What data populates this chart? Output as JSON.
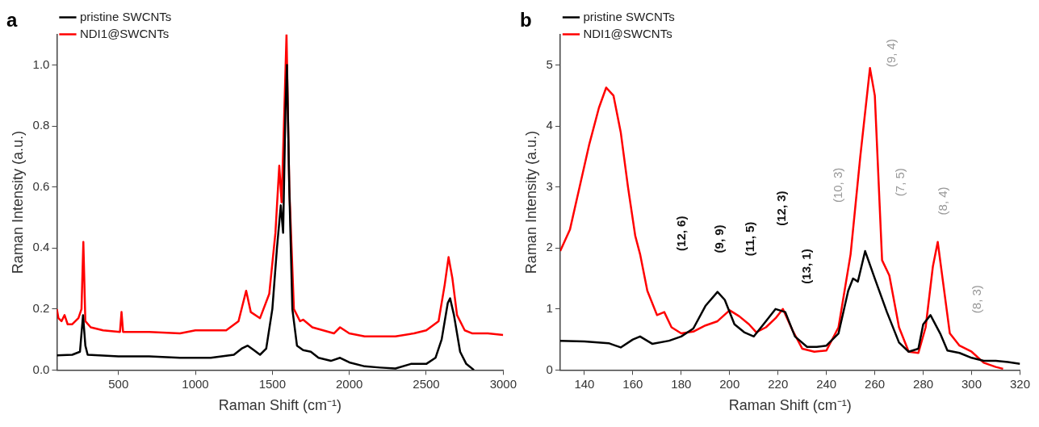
{
  "chart_data": [
    {
      "type": "line",
      "title": "a",
      "xlabel": "Raman Shift (cm⁻¹)",
      "ylabel": "Raman Intensity (a.u.)",
      "xlim": [
        100,
        3000
      ],
      "xticks": [
        500,
        1000,
        1500,
        2000,
        2500,
        3000
      ],
      "ylim": [
        0,
        1.1
      ],
      "yticks": [
        {
          "value": 0,
          "label": "0.0"
        },
        0.2,
        0.4,
        0.6,
        0.8,
        {
          "value": 1,
          "label": "1.0"
        }
      ],
      "grid": false,
      "legend": "top left",
      "series": [
        {
          "name": "pristine SWCNTs",
          "color": "#000000",
          "x": [
            100,
            200,
            250,
            270,
            285,
            300,
            500,
            700,
            900,
            1100,
            1250,
            1300,
            1340,
            1380,
            1420,
            1460,
            1500,
            1530,
            1555,
            1570,
            1585,
            1595,
            1610,
            1630,
            1660,
            1700,
            1750,
            1800,
            1880,
            1940,
            2000,
            2100,
            2200,
            2300,
            2400,
            2500,
            2560,
            2600,
            2640,
            2655,
            2680,
            2720,
            2760,
            2810
          ],
          "values": [
            0.048,
            0.05,
            0.06,
            0.18,
            0.08,
            0.05,
            0.045,
            0.045,
            0.04,
            0.04,
            0.05,
            0.07,
            0.08,
            0.065,
            0.05,
            0.07,
            0.2,
            0.4,
            0.54,
            0.45,
            0.85,
            1.0,
            0.6,
            0.2,
            0.08,
            0.065,
            0.06,
            0.04,
            0.03,
            0.04,
            0.025,
            0.012,
            0.008,
            0.005,
            0.02,
            0.02,
            0.04,
            0.1,
            0.22,
            0.235,
            0.18,
            0.06,
            0.02,
            0.0
          ]
        },
        {
          "name": "NDI1@SWCNTs",
          "color": "#ff0000",
          "x": [
            100,
            110,
            130,
            150,
            170,
            200,
            240,
            260,
            272,
            285,
            320,
            400,
            510,
            520,
            530,
            700,
            900,
            1000,
            1200,
            1280,
            1330,
            1360,
            1420,
            1480,
            1520,
            1545,
            1560,
            1575,
            1592,
            1610,
            1640,
            1680,
            1700,
            1760,
            1900,
            1940,
            2000,
            2100,
            2300,
            2420,
            2500,
            2580,
            2620,
            2645,
            2670,
            2700,
            2750,
            2800,
            2900,
            3000
          ],
          "values": [
            0.2,
            0.17,
            0.16,
            0.18,
            0.15,
            0.15,
            0.17,
            0.2,
            0.42,
            0.16,
            0.14,
            0.13,
            0.125,
            0.19,
            0.125,
            0.125,
            0.12,
            0.13,
            0.13,
            0.16,
            0.26,
            0.19,
            0.17,
            0.25,
            0.45,
            0.67,
            0.55,
            0.8,
            1.1,
            0.6,
            0.2,
            0.16,
            0.165,
            0.14,
            0.12,
            0.14,
            0.12,
            0.11,
            0.11,
            0.12,
            0.13,
            0.16,
            0.28,
            0.37,
            0.3,
            0.18,
            0.13,
            0.12,
            0.12,
            0.115
          ]
        }
      ]
    },
    {
      "type": "line",
      "title": "b",
      "xlabel": "Raman Shift (cm⁻¹)",
      "ylabel": "Raman Intensity (a.u.)",
      "xlim": [
        130,
        320
      ],
      "xticks": [
        140,
        160,
        180,
        200,
        220,
        240,
        260,
        280,
        300,
        320
      ],
      "ylim": [
        0,
        5.5
      ],
      "yticks": [
        0,
        1,
        2,
        3,
        4,
        5
      ],
      "grid": false,
      "legend": "top left",
      "series": [
        {
          "name": "pristine SWCNTs",
          "color": "#000000",
          "x": [
            130,
            140,
            150,
            155,
            160,
            163,
            168,
            175,
            180,
            185,
            190,
            195,
            198,
            202,
            206,
            210,
            214,
            219,
            223,
            227,
            232,
            236,
            240,
            245,
            249,
            251,
            253,
            256,
            260,
            265,
            270,
            274,
            278,
            280,
            283,
            287,
            290,
            295,
            300,
            305,
            310,
            315,
            320
          ],
          "values": [
            0.48,
            0.47,
            0.44,
            0.37,
            0.5,
            0.55,
            0.43,
            0.48,
            0.55,
            0.68,
            1.05,
            1.28,
            1.15,
            0.75,
            0.62,
            0.55,
            0.75,
            1.0,
            0.95,
            0.55,
            0.38,
            0.38,
            0.4,
            0.6,
            1.3,
            1.5,
            1.45,
            1.95,
            1.5,
            0.95,
            0.45,
            0.3,
            0.35,
            0.75,
            0.9,
            0.6,
            0.32,
            0.28,
            0.2,
            0.15,
            0.15,
            0.13,
            0.1
          ]
        },
        {
          "name": "NDI1@SWCNTs",
          "color": "#ff0000",
          "x": [
            130,
            134,
            138,
            142,
            146,
            149,
            152,
            155,
            158,
            161,
            163,
            166,
            170,
            173,
            176,
            180,
            185,
            190,
            195,
            200,
            204,
            208,
            211,
            215,
            219,
            222,
            226,
            230,
            235,
            240,
            245,
            250,
            254,
            258,
            260,
            263,
            266,
            270,
            274,
            278,
            281,
            284,
            286,
            288,
            291,
            295,
            300,
            305,
            310,
            313
          ],
          "values": [
            1.95,
            2.3,
            3.0,
            3.7,
            4.3,
            4.63,
            4.5,
            3.9,
            3.0,
            2.2,
            1.9,
            1.3,
            0.9,
            0.95,
            0.7,
            0.6,
            0.63,
            0.73,
            0.8,
            0.98,
            0.88,
            0.75,
            0.62,
            0.7,
            0.85,
            1.0,
            0.65,
            0.35,
            0.3,
            0.32,
            0.7,
            1.9,
            3.5,
            4.95,
            4.5,
            1.8,
            1.55,
            0.7,
            0.3,
            0.28,
            0.7,
            1.7,
            2.1,
            1.5,
            0.6,
            0.4,
            0.3,
            0.12,
            0.05,
            0.02
          ]
        }
      ],
      "annotations": [
        "(12, 6)",
        "(9, 9)",
        "(11, 5)",
        "(12, 3)",
        "(13, 1)",
        "(10, 3)",
        "(9, 4)",
        "(7, 5)",
        "(8, 4)",
        "(8, 3)"
      ]
    }
  ]
}
